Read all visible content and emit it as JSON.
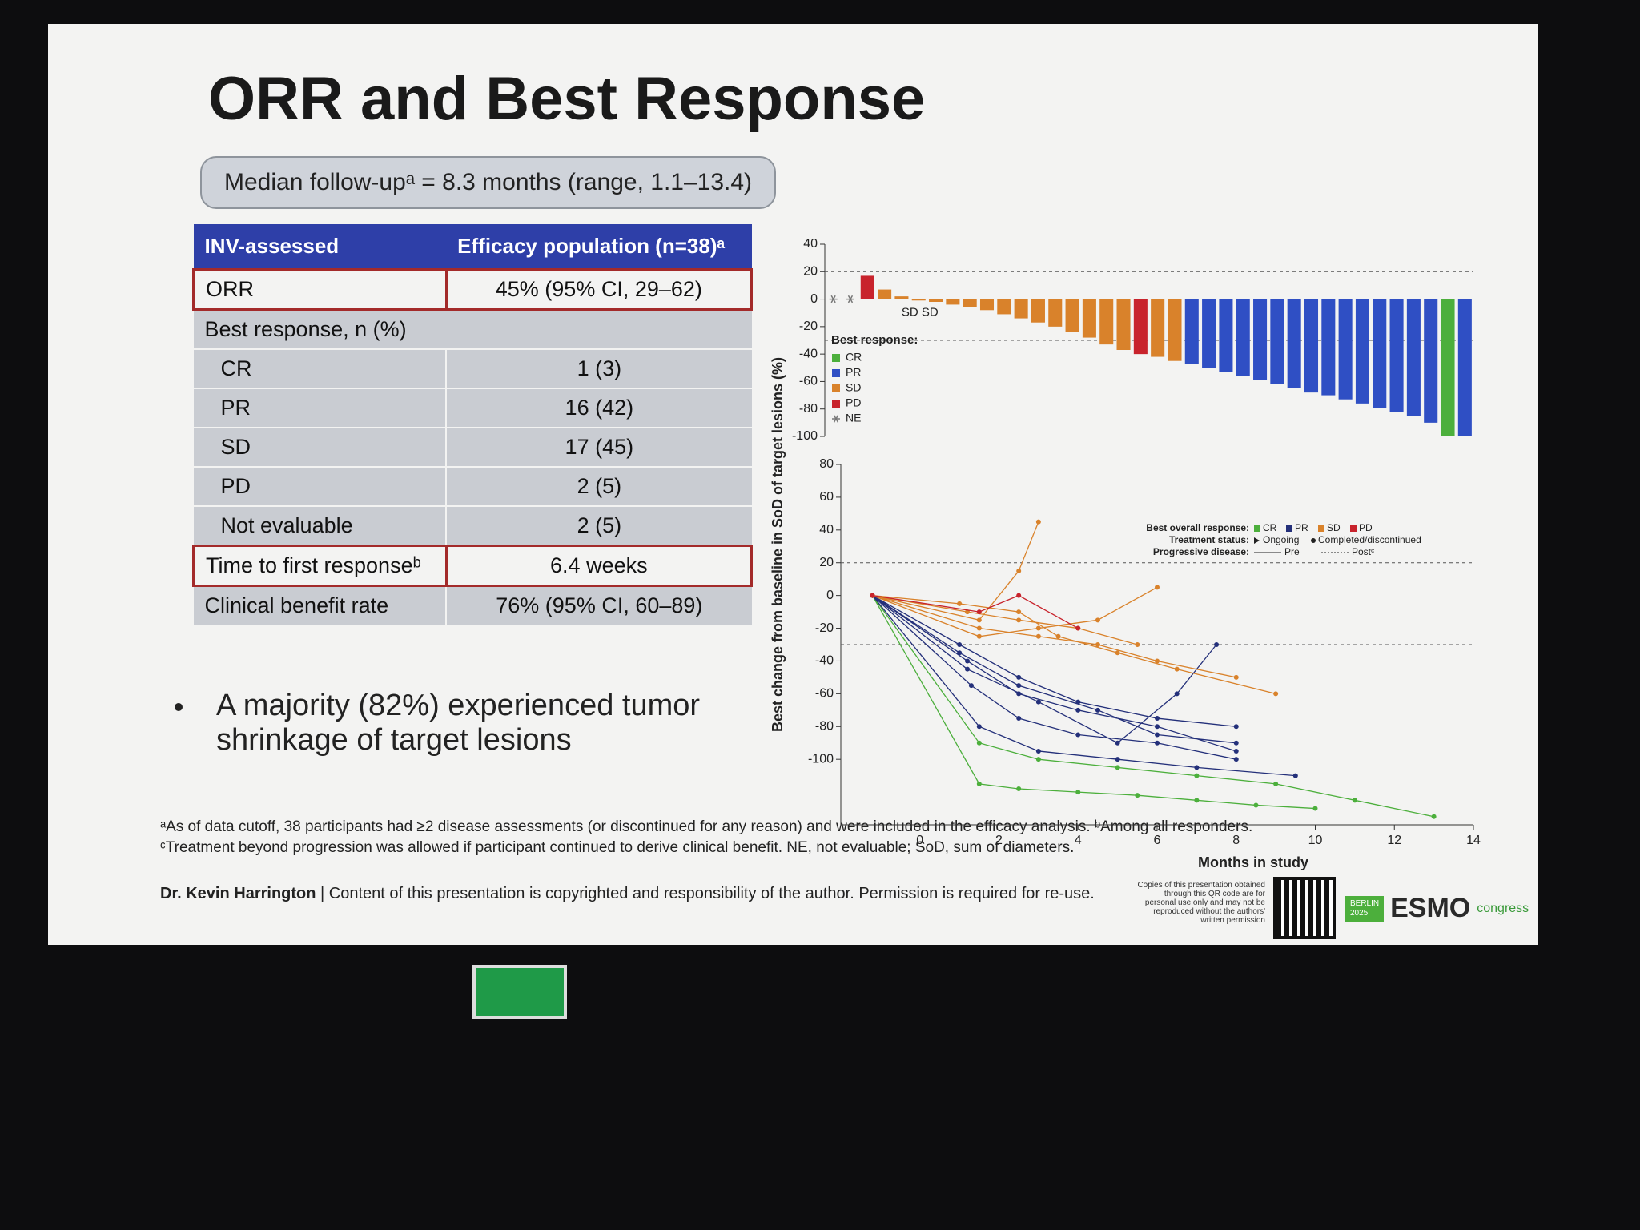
{
  "slide": {
    "title": "ORR and Best Response",
    "subtitle": "Median follow-upᵃ = 8.3 months (range, 1.1–13.4)",
    "table": {
      "header": [
        "INV-assessed",
        "Efficacy population (n=38)ᵃ"
      ],
      "rows": [
        [
          "ORR",
          "45% (95% CI, 29–62)"
        ],
        [
          "Best response, n (%)"
        ],
        [
          "CR",
          "1 (3)"
        ],
        [
          "PR",
          "16 (42)"
        ],
        [
          "SD",
          "17 (45)"
        ],
        [
          "PD",
          "2 (5)"
        ],
        [
          "Not evaluable",
          "2 (5)"
        ],
        [
          "Time to first responseᵇ",
          "6.4 weeks"
        ],
        [
          "Clinical benefit rate",
          "76% (95% CI, 60–89)"
        ]
      ]
    },
    "bullet": "A majority (82%) experienced tumor shrinkage of target lesions",
    "footnotes": [
      "ᵃAs of data cutoff, 38 participants had ≥2 disease assessments (or discontinued for any reason) and were included in the efficacy analysis. ᵇAmong all responders.",
      "ᶜTreatment beyond progression was allowed if participant continued to derive clinical benefit. NE, not evaluable; SoD, sum of diameters."
    ],
    "author": "Dr. Kevin Harrington",
    "copyright": "| Content of this presentation is copyrighted and responsibility of the author. Permission is required for re-use.",
    "qr_note": "Copies of this presentation obtained through this QR code are for personal use only and may not be reproduced without the authors' written permission",
    "logo": {
      "city": "BERLIN",
      "year": "2025",
      "name": "ESMO",
      "suffix": "congress"
    }
  },
  "chart_data": [
    {
      "type": "bar",
      "ylabel": "Best change from baseline in SoD of target lesions (%)",
      "ylim": [
        -100,
        40
      ],
      "yticks": [
        -100,
        -80,
        -60,
        -40,
        -20,
        0,
        20,
        40
      ],
      "reference_lines": [
        20,
        -30
      ],
      "legend_title": "Best response:",
      "annotation": "SD SD",
      "series": [
        {
          "name": "CR",
          "color": "#4caf3c",
          "values": [
            null,
            null,
            null,
            null,
            null,
            null,
            null,
            null,
            null,
            null,
            null,
            null,
            null,
            null,
            null,
            null,
            null,
            null,
            null,
            null,
            null,
            null,
            null,
            null,
            null,
            null,
            null,
            null,
            null,
            null,
            null,
            null,
            null,
            null,
            null,
            null,
            -100,
            null
          ]
        },
        {
          "name": "PR",
          "color": "#2f4fc4",
          "values": [
            null,
            null,
            null,
            null,
            null,
            null,
            null,
            null,
            null,
            null,
            null,
            null,
            null,
            null,
            null,
            null,
            null,
            null,
            null,
            null,
            null,
            -47,
            -50,
            -53,
            -56,
            -59,
            -62,
            -65,
            -68,
            -70,
            -73,
            -76,
            -79,
            -82,
            -85,
            -90,
            null,
            -100
          ]
        },
        {
          "name": "SD",
          "color": "#d9822b",
          "values": [
            null,
            null,
            null,
            7,
            2,
            -1,
            -2,
            -4,
            -6,
            -8,
            -11,
            -14,
            -17,
            -20,
            -24,
            -28,
            -33,
            -37,
            null,
            -42,
            -45,
            null,
            null,
            null,
            null,
            null,
            null,
            null,
            null,
            null,
            null,
            null,
            null,
            null,
            null,
            null,
            null,
            null
          ]
        },
        {
          "name": "PD",
          "color": "#c8232c",
          "values": [
            null,
            null,
            17,
            null,
            null,
            null,
            null,
            null,
            null,
            null,
            null,
            null,
            null,
            null,
            null,
            null,
            null,
            null,
            -40,
            null,
            null,
            null,
            null,
            null,
            null,
            null,
            null,
            null,
            null,
            null,
            null,
            null,
            null,
            null,
            null,
            null,
            null,
            null
          ]
        },
        {
          "name": "NE",
          "color": "#777777",
          "values": [
            0,
            0,
            null,
            null,
            null,
            null,
            null,
            null,
            null,
            null,
            null,
            null,
            null,
            null,
            null,
            null,
            null,
            null,
            null,
            null,
            null,
            null,
            null,
            null,
            null,
            null,
            null,
            null,
            null,
            null,
            null,
            null,
            null,
            null,
            null,
            null,
            null,
            null
          ]
        }
      ]
    },
    {
      "type": "line",
      "xlabel": "Months in study",
      "xlim": [
        -2,
        14
      ],
      "xticks": [
        0,
        2,
        4,
        6,
        8,
        10,
        12,
        14
      ],
      "ylim": [
        -140,
        80
      ],
      "yticks": [
        -100,
        -80,
        -60,
        -40,
        -20,
        0,
        20,
        40,
        60,
        80
      ],
      "reference_lines": [
        20,
        -30
      ],
      "legend": {
        "best_overall_response": "Best overall response:",
        "treatment_status": "Treatment status:",
        "ongoing": "Ongoing",
        "completed": "Completed/discontinued",
        "progressive_disease": "Progressive disease:",
        "pre": "Pre",
        "post": "Postᶜ"
      },
      "series": [
        {
          "name": "CR",
          "color": "#4caf3c",
          "x": [
            -1.2,
            1.5,
            2.5,
            4,
            5.5,
            7,
            8.5,
            10,
            null,
            -1.2,
            1.5,
            3,
            5,
            7,
            9,
            11,
            13
          ],
          "values": [
            0,
            -115,
            -118,
            -120,
            -122,
            -125,
            -128,
            -130,
            null,
            0,
            -90,
            -100,
            -105,
            -110,
            -115,
            -125,
            -135
          ]
        },
        {
          "name": "PR",
          "color": "#24307a",
          "x": [
            -1.2,
            1.2,
            2.5,
            4,
            6,
            8,
            null,
            -1.2,
            1.3,
            2.5,
            4,
            6,
            8,
            null,
            -1.2,
            1,
            2.5,
            4,
            6,
            8,
            null,
            -1.2,
            1.5,
            3,
            5,
            7,
            9.5,
            null,
            -1.2,
            1.2,
            3,
            5,
            6.5,
            7.5,
            null,
            -1.2,
            1,
            2.5,
            4.5,
            6,
            8
          ],
          "values": [
            0,
            -40,
            -60,
            -70,
            -80,
            -95,
            null,
            0,
            -55,
            -75,
            -85,
            -90,
            -100,
            null,
            0,
            -30,
            -50,
            -65,
            -75,
            -80,
            null,
            0,
            -80,
            -95,
            -100,
            -105,
            -110,
            null,
            0,
            -45,
            -65,
            -90,
            -60,
            -30,
            null,
            0,
            -35,
            -55,
            -70,
            -85,
            -90
          ]
        },
        {
          "name": "SD",
          "color": "#d9822b",
          "x": [
            -1.2,
            1.5,
            3,
            4.5,
            6,
            8,
            null,
            -1.2,
            1.2,
            2.5,
            4,
            5.5,
            null,
            -1.2,
            1,
            2.5,
            3.5,
            5,
            6.5,
            9,
            null,
            -1.2,
            1.5,
            2.5,
            3,
            null,
            -1.2,
            1.5,
            3,
            4.5,
            6
          ],
          "values": [
            0,
            -20,
            -25,
            -30,
            -40,
            -50,
            null,
            0,
            -10,
            -15,
            -20,
            -30,
            null,
            0,
            -5,
            -10,
            -25,
            -35,
            -45,
            -60,
            null,
            0,
            -15,
            15,
            45,
            null,
            0,
            -25,
            -20,
            -15,
            5
          ]
        },
        {
          "name": "PD",
          "color": "#c8232c",
          "x": [
            -1.2,
            1.5,
            2.5,
            4
          ],
          "values": [
            0,
            -10,
            0,
            -20
          ]
        }
      ]
    }
  ]
}
